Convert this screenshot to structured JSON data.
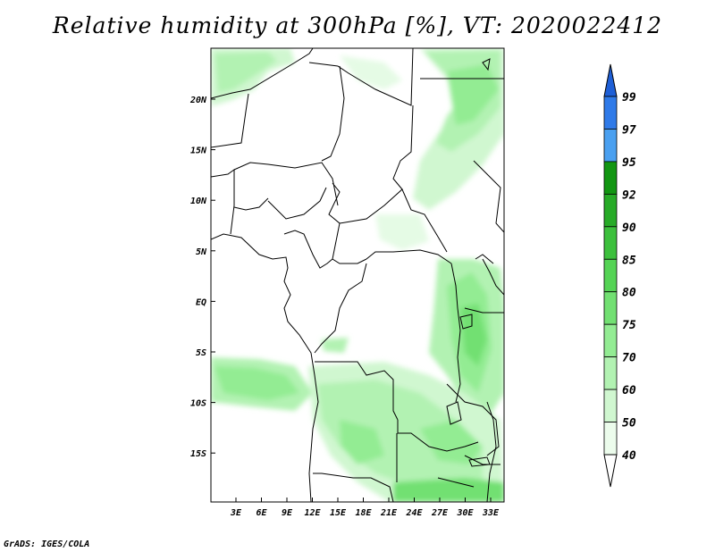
{
  "title": "Relative humidity at 300hPa [%], VT: 2020022412",
  "credit": "GrADS: IGES/COLA",
  "map": {
    "lon_labels": [
      "3E",
      "6E",
      "9E",
      "12E",
      "15E",
      "18E",
      "21E",
      "24E",
      "27E",
      "30E",
      "33E"
    ],
    "lat_labels": [
      "20N",
      "15N",
      "10N",
      "5N",
      "EQ",
      "5S",
      "10S",
      "15S"
    ]
  },
  "colorbar": {
    "levels": [
      "99",
      "97",
      "95",
      "92",
      "90",
      "85",
      "80",
      "75",
      "70",
      "60",
      "50",
      "40"
    ],
    "colors": [
      "#1e5fd6",
      "#2f7ae8",
      "#4aa0f0",
      "#129612",
      "#27ab27",
      "#3cc03c",
      "#55d455",
      "#72e072",
      "#93ec93",
      "#b2f2b2",
      "#d0f7d0",
      "#ecfcec"
    ]
  }
}
